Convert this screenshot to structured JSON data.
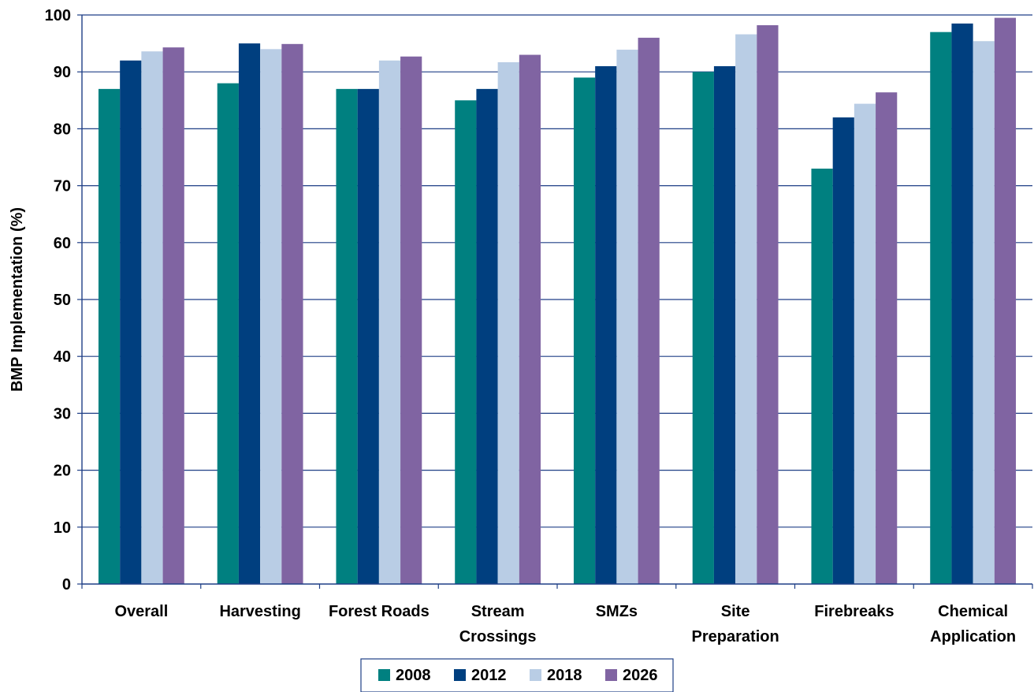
{
  "chart_data": {
    "type": "bar",
    "title": "",
    "xlabel": "",
    "ylabel": "BMP Implementation (%)",
    "ylim": [
      0,
      100
    ],
    "yticks": [
      0,
      10,
      20,
      30,
      40,
      50,
      60,
      70,
      80,
      90,
      100
    ],
    "grid": true,
    "legend_position": "bottom",
    "categories": [
      [
        "Overall"
      ],
      [
        "Harvesting"
      ],
      [
        "Forest Roads"
      ],
      [
        "Stream",
        "Crossings"
      ],
      [
        "SMZs"
      ],
      [
        "Site",
        "Preparation"
      ],
      [
        "Firebreaks"
      ],
      [
        "Chemical",
        "Application"
      ]
    ],
    "series": [
      {
        "name": "2008",
        "color": "#008080",
        "values": [
          87,
          88,
          87,
          85,
          89,
          90,
          73,
          97
        ]
      },
      {
        "name": "2012",
        "color": "#003F7F",
        "values": [
          92,
          95,
          87,
          87,
          91,
          91,
          82,
          98.5
        ]
      },
      {
        "name": "2018",
        "color": "#B9CDE5",
        "values": [
          93.6,
          94,
          92,
          91.7,
          93.9,
          96.6,
          84.4,
          95.4
        ]
      },
      {
        "name": "2026",
        "color": "#8064A2",
        "values": [
          94.3,
          94.9,
          92.7,
          93,
          96,
          98.2,
          86.4,
          99.5
        ]
      }
    ]
  }
}
